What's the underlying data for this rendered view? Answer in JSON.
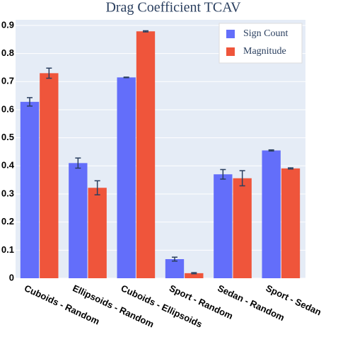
{
  "chart_data": {
    "type": "bar",
    "title": "Drag Coefficient TCAV",
    "categories": [
      "Cuboids - Random",
      "Ellipsoids - Random",
      "Cuboids - Ellipsoids",
      "Sport - Random",
      "Sedan - Random",
      "Sport - Sedan"
    ],
    "series": [
      {
        "name": "Sign Count",
        "color": "#636efa",
        "values": [
          0.628,
          0.41,
          0.715,
          0.068,
          0.37,
          0.455
        ],
        "errors": [
          0.015,
          0.018,
          0.001,
          0.007,
          0.017,
          0.002
        ]
      },
      {
        "name": "Magnitude",
        "color": "#ef553b",
        "values": [
          0.73,
          0.322,
          0.879,
          0.018,
          0.356,
          0.391
        ],
        "errors": [
          0.018,
          0.025,
          0.002,
          0.002,
          0.027,
          0.002
        ]
      }
    ],
    "ylim": [
      0,
      0.92
    ],
    "yticks": [
      0,
      0.1,
      0.2,
      0.3,
      0.4,
      0.5,
      0.6,
      0.7,
      0.8,
      0.9
    ],
    "grid": true,
    "legend": "top-right"
  }
}
